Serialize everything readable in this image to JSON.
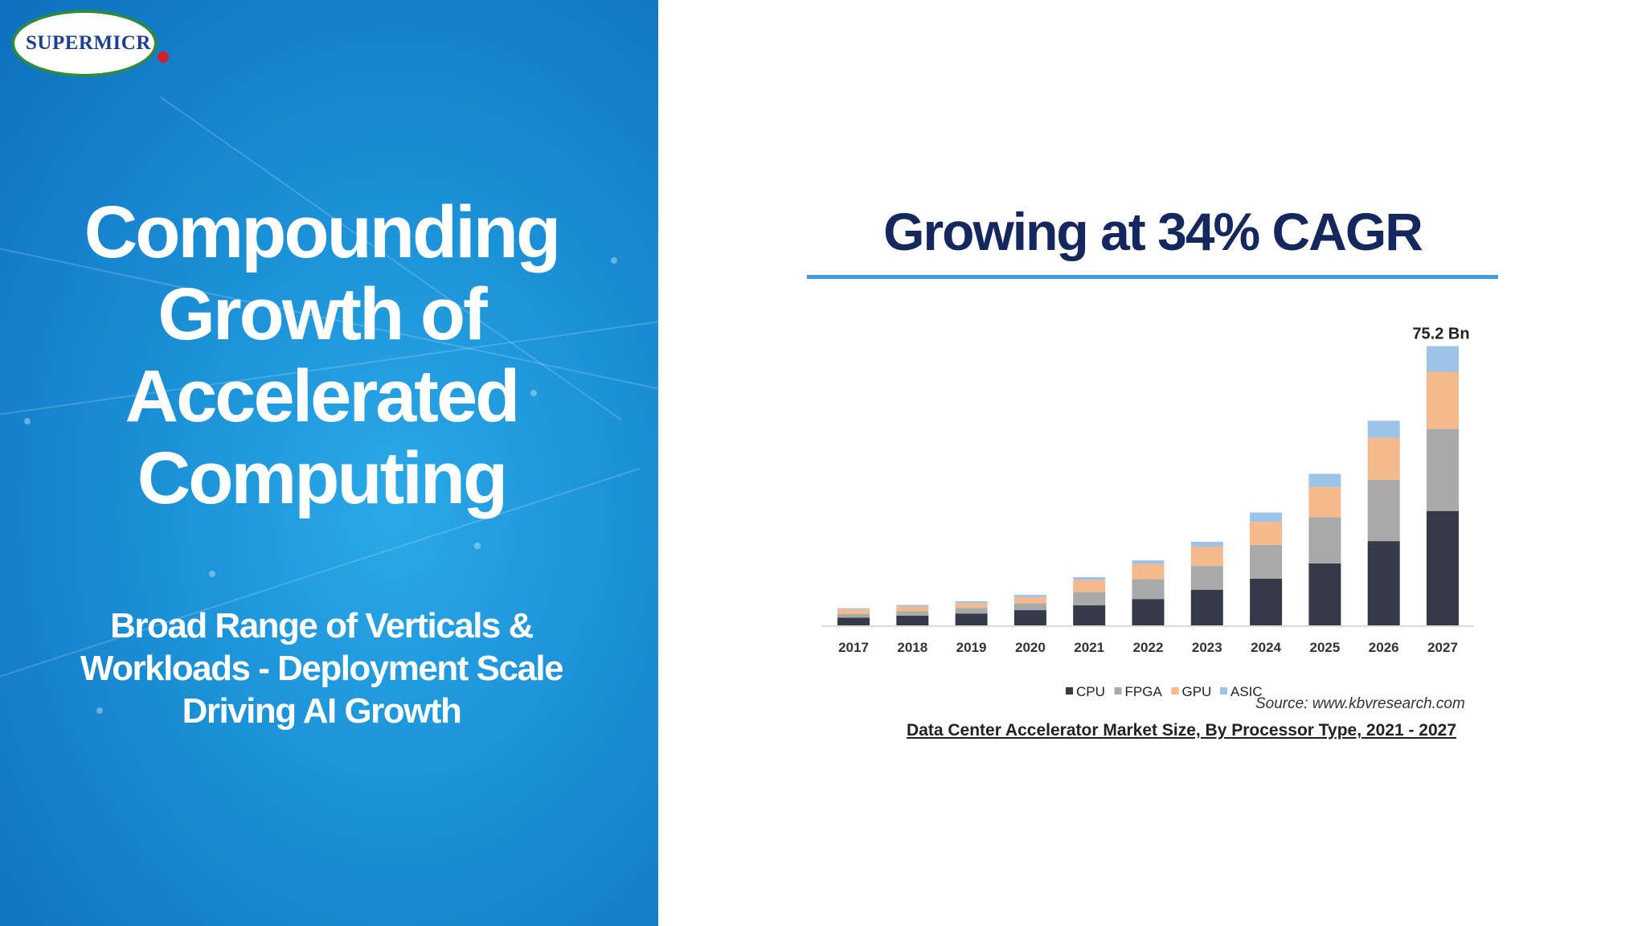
{
  "logo": {
    "text": "SUPERMICR"
  },
  "left": {
    "title_lines": [
      "Compounding",
      "Growth of",
      "Accelerated",
      "Computing"
    ],
    "subtitle_lines": [
      "Broad Range of Verticals &",
      "Workloads - Deployment Scale",
      "Driving AI Growth"
    ]
  },
  "right": {
    "heading": "Growing at 34% CAGR",
    "source": "Source: www.kbvresearch.com",
    "caption": "Data Center Accelerator Market Size, By Processor Type, 2021 - 2027"
  },
  "colors": {
    "cpu": "#343a48",
    "fpga": "#a9a9a9",
    "gpu": "#f5b98c",
    "asic": "#9dc3e6",
    "heading": "#14285e",
    "rule": "#3f9de0"
  },
  "chart_data": {
    "type": "bar",
    "stacked": true,
    "categories": [
      "2017",
      "2018",
      "2019",
      "2020",
      "2021",
      "2022",
      "2023",
      "2024",
      "2025",
      "2026",
      "2027"
    ],
    "series": [
      {
        "name": "CPU",
        "values": [
          2.1,
          2.6,
          3.2,
          4.1,
          5.4,
          7.1,
          9.6,
          12.6,
          16.7,
          22.7,
          30.8
        ]
      },
      {
        "name": "FPGA",
        "values": [
          1.0,
          1.2,
          1.5,
          1.9,
          3.6,
          5.4,
          6.4,
          9.1,
          12.4,
          16.5,
          22.1
        ]
      },
      {
        "name": "GPU",
        "values": [
          1.2,
          1.3,
          1.3,
          1.6,
          3.2,
          4.0,
          5.2,
          6.2,
          8.2,
          11.3,
          15.4
        ]
      },
      {
        "name": "ASIC",
        "values": [
          0.3,
          0.4,
          0.5,
          0.6,
          0.8,
          1.0,
          1.3,
          2.5,
          3.5,
          4.6,
          6.9
        ]
      }
    ],
    "annotations": [
      {
        "category": "2027",
        "text": "75.2 Bn"
      }
    ],
    "legend": {
      "position": "bottom"
    },
    "grid": false
  }
}
